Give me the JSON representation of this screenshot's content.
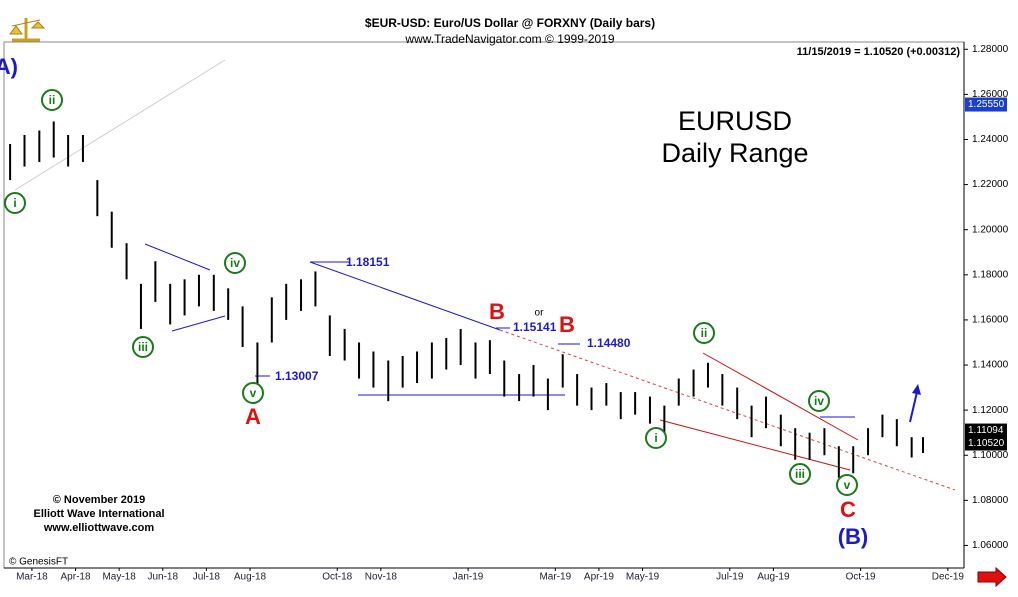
{
  "chart_data": {
    "type": "ohlc",
    "title": "$EUR-USD:  Euro/US Dollar @ FORXNY  (Daily bars)",
    "subtitle": "www.TradeNavigator.com © 1999-2019",
    "last_quote": "11/15/2019 = 1.10520 (+0.00312)",
    "headline": [
      "EURUSD",
      "Daily Range"
    ],
    "credits": [
      "© November 2019",
      "Elliott Wave International",
      "www.elliottwave.com"
    ],
    "data_source": "© GenesisFT",
    "color": "#000000",
    "x": [
      -0.5,
      -0.17,
      0.17,
      0.5,
      0.83,
      1.17,
      1.5,
      1.83,
      2.17,
      2.5,
      2.83,
      3.17,
      3.5,
      3.83,
      4.17,
      4.5,
      4.83,
      5.17,
      5.5,
      5.83,
      6.17,
      6.5,
      6.83,
      7.17,
      7.5,
      7.83,
      8.17,
      8.5,
      8.83,
      9.17,
      9.5,
      9.83,
      10.17,
      10.5,
      10.83,
      11.17,
      11.5,
      11.83,
      12.17,
      12.5,
      12.83,
      13.17,
      13.5,
      13.83,
      14.17,
      14.5,
      14.83,
      15.17,
      15.5,
      15.83,
      16.17,
      16.5,
      16.83,
      17.17,
      17.5,
      17.83,
      18.17,
      18.5,
      18.83,
      19.17,
      19.5,
      19.83,
      20.17,
      20.43
    ],
    "low": [
      1.222,
      1.228,
      1.23,
      1.232,
      1.228,
      1.23,
      1.206,
      1.192,
      1.178,
      1.156,
      1.168,
      1.158,
      1.162,
      1.166,
      1.164,
      1.16,
      1.148,
      1.13,
      1.15,
      1.16,
      1.164,
      1.166,
      1.144,
      1.142,
      1.134,
      1.13,
      1.124,
      1.13,
      1.132,
      1.134,
      1.138,
      1.14,
      1.134,
      1.136,
      1.126,
      1.124,
      1.126,
      1.12,
      1.13,
      1.122,
      1.12,
      1.122,
      1.116,
      1.118,
      1.114,
      1.11,
      1.122,
      1.126,
      1.13,
      1.122,
      1.116,
      1.108,
      1.112,
      1.104,
      1.098,
      1.098,
      1.1,
      1.09,
      1.092,
      1.1,
      1.108,
      1.104,
      1.099,
      1.101
    ],
    "high": [
      1.238,
      1.242,
      1.244,
      1.248,
      1.242,
      1.242,
      1.222,
      1.208,
      1.194,
      1.176,
      1.186,
      1.176,
      1.178,
      1.18,
      1.18,
      1.174,
      1.166,
      1.15,
      1.17,
      1.176,
      1.178,
      1.1815,
      1.162,
      1.156,
      1.15,
      1.146,
      1.142,
      1.144,
      1.146,
      1.15,
      1.152,
      1.156,
      1.15,
      1.151,
      1.142,
      1.136,
      1.14,
      1.134,
      1.1448,
      1.136,
      1.13,
      1.132,
      1.128,
      1.128,
      1.126,
      1.122,
      1.134,
      1.138,
      1.141,
      1.136,
      1.13,
      1.122,
      1.126,
      1.118,
      1.112,
      1.11,
      1.112,
      1.104,
      1.104,
      1.112,
      1.118,
      1.116,
      1.108,
      1.108
    ],
    "xlim": [
      -0.64,
      21.37
    ],
    "xticks": [
      {
        "value": 0,
        "label": "Mar-18"
      },
      {
        "value": 1,
        "label": "Apr-18"
      },
      {
        "value": 2,
        "label": "May-18"
      },
      {
        "value": 3,
        "label": "Jun-18"
      },
      {
        "value": 4,
        "label": "Jul-18"
      },
      {
        "value": 5,
        "label": "Aug-18"
      },
      {
        "value": 7,
        "label": "Oct-18"
      },
      {
        "value": 8,
        "label": "Nov-18"
      },
      {
        "value": 10,
        "label": "Jan-19"
      },
      {
        "value": 12,
        "label": "Mar-19"
      },
      {
        "value": 13,
        "label": "Apr-19"
      },
      {
        "value": 14,
        "label": "May-19"
      },
      {
        "value": 16,
        "label": "Jul-19"
      },
      {
        "value": 17,
        "label": "Aug-19"
      },
      {
        "value": 19,
        "label": "Oct-19"
      },
      {
        "value": 21,
        "label": "Dec-19"
      }
    ],
    "ylim": [
      1.05,
      1.285
    ],
    "yticks": [
      {
        "value": 1.06,
        "label": "1.06000"
      },
      {
        "value": 1.08,
        "label": "1.08000"
      },
      {
        "value": 1.1,
        "label": "1.10000"
      },
      {
        "value": 1.12,
        "label": "1.12000"
      },
      {
        "value": 1.14,
        "label": "1.14000"
      },
      {
        "value": 1.16,
        "label": "1.16000"
      },
      {
        "value": 1.18,
        "label": "1.18000"
      },
      {
        "value": 1.2,
        "label": "1.20000"
      },
      {
        "value": 1.22,
        "label": "1.22000"
      },
      {
        "value": 1.24,
        "label": "1.24000"
      },
      {
        "value": 1.26,
        "label": "1.26000"
      },
      {
        "value": 1.28,
        "label": "1.28000"
      }
    ],
    "price_markers": [
      {
        "value": 1.2555,
        "label": "1.25550",
        "color": "#1a3fd0"
      },
      {
        "value": 1.11094,
        "label": "1.11094",
        "color": "#000000"
      },
      {
        "value": 1.1052,
        "label": "1.10520",
        "color": "#000000"
      }
    ],
    "waves": [
      "ii",
      "i",
      "iii",
      "iv",
      "v",
      "i",
      "ii",
      "iii",
      "iv",
      "v"
    ],
    "wave_color": "#1a7a1a",
    "corrections": [
      "A",
      "B",
      "B",
      "C"
    ],
    "corrections_color": "#e01010",
    "degree_labels": [
      "(A)",
      "(B)"
    ],
    "price_labels": [
      "1.18151",
      "1.15141",
      "1.14480",
      "1.13007"
    ],
    "or_label": "or"
  }
}
